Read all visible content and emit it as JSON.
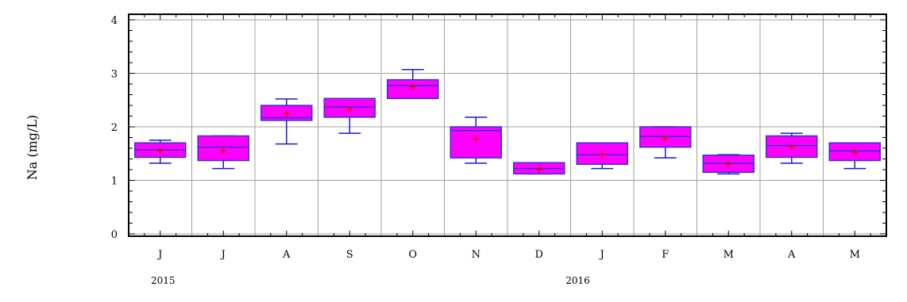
{
  "chart_data": {
    "type": "box",
    "ylabel": "Na (mg/L)",
    "ylim": [
      0,
      4
    ],
    "yticks": [
      "0",
      "1",
      "2",
      "3",
      "4"
    ],
    "grid": true,
    "categories": [
      "J",
      "J",
      "A",
      "S",
      "O",
      "N",
      "D",
      "J",
      "F",
      "M",
      "A",
      "M"
    ],
    "year_labels": [
      {
        "text": "2015",
        "category_index": 0
      },
      {
        "text": "2016",
        "category_index": 7
      }
    ],
    "boxes": [
      {
        "whisker_low": 1.32,
        "q1": 1.43,
        "median": 1.57,
        "q3": 1.7,
        "whisker_high": 1.75,
        "mean": 1.55
      },
      {
        "whisker_low": 1.22,
        "q1": 1.37,
        "median": 1.62,
        "q3": 1.83,
        "whisker_high": 1.83,
        "mean": 1.55
      },
      {
        "whisker_low": 1.68,
        "q1": 2.12,
        "median": 2.17,
        "q3": 2.4,
        "whisker_high": 2.52,
        "mean": 2.25
      },
      {
        "whisker_low": 1.88,
        "q1": 2.18,
        "median": 2.37,
        "q3": 2.53,
        "whisker_high": 2.53,
        "mean": 2.33
      },
      {
        "whisker_low": 2.53,
        "q1": 2.53,
        "median": 2.77,
        "q3": 2.88,
        "whisker_high": 3.07,
        "mean": 2.75
      },
      {
        "whisker_low": 1.32,
        "q1": 1.42,
        "median": 1.93,
        "q3": 2.0,
        "whisker_high": 2.18,
        "mean": 1.77
      },
      {
        "whisker_low": 1.12,
        "q1": 1.12,
        "median": 1.22,
        "q3": 1.33,
        "whisker_high": 1.33,
        "mean": 1.2
      },
      {
        "whisker_low": 1.22,
        "q1": 1.3,
        "median": 1.48,
        "q3": 1.7,
        "whisker_high": 1.7,
        "mean": 1.48
      },
      {
        "whisker_low": 1.42,
        "q1": 1.62,
        "median": 1.82,
        "q3": 2.0,
        "whisker_high": 2.0,
        "mean": 1.78
      },
      {
        "whisker_low": 1.12,
        "q1": 1.15,
        "median": 1.32,
        "q3": 1.47,
        "whisker_high": 1.48,
        "mean": 1.3
      },
      {
        "whisker_low": 1.32,
        "q1": 1.43,
        "median": 1.65,
        "q3": 1.83,
        "whisker_high": 1.88,
        "mean": 1.62
      },
      {
        "whisker_low": 1.22,
        "q1": 1.37,
        "median": 1.55,
        "q3": 1.7,
        "whisker_high": 1.7,
        "mean": 1.52
      }
    ],
    "colors": {
      "box_fill": "#ff00ff",
      "box_stroke": "#3333cc",
      "whisker": "#1a1acc",
      "mean_marker": "#ff0000",
      "grid": "#a0a0a0",
      "frame": "#000000"
    }
  }
}
